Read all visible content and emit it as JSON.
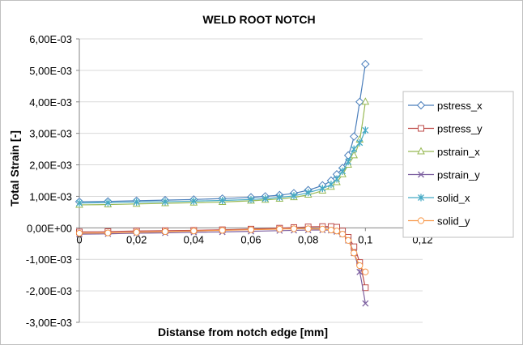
{
  "chart_data": {
    "type": "line",
    "title": "WELD ROOT NOTCH",
    "xlabel": "Distanse from notch edge  [mm]",
    "ylabel": "Total Strain [-]",
    "xlim": [
      0,
      0.12
    ],
    "ylim": [
      -0.003,
      0.006
    ],
    "x_ticks": [
      0,
      0.02,
      0.04,
      0.06,
      0.08,
      0.1,
      0.12
    ],
    "x_tick_labels": [
      "0",
      "0,02",
      "0,04",
      "0,06",
      "0,08",
      "0,1",
      "0,12"
    ],
    "y_ticks": [
      -0.003,
      -0.002,
      -0.001,
      0,
      0.001,
      0.002,
      0.003,
      0.004,
      0.005,
      0.006
    ],
    "y_tick_labels": [
      "-3,00E-03",
      "-2,00E-03",
      "-1,00E-03",
      "0,00E+00",
      "1,00E-03",
      "2,00E-03",
      "3,00E-03",
      "4,00E-03",
      "5,00E-03",
      "6,00E-03"
    ],
    "grid": "horizontal",
    "legend": "right",
    "series": [
      {
        "name": "pstress_x",
        "color": "#4a7ebb",
        "marker": "diamond",
        "x": [
          0,
          0.01,
          0.02,
          0.03,
          0.04,
          0.05,
          0.06,
          0.065,
          0.07,
          0.075,
          0.08,
          0.085,
          0.088,
          0.09,
          0.092,
          0.094,
          0.096,
          0.098,
          0.1
        ],
        "y": [
          0.00083,
          0.00084,
          0.00086,
          0.00088,
          0.0009,
          0.00093,
          0.00097,
          0.001,
          0.00104,
          0.0011,
          0.0012,
          0.00135,
          0.0015,
          0.0017,
          0.0019,
          0.0023,
          0.0029,
          0.004,
          0.0052
        ]
      },
      {
        "name": "pstress_y",
        "color": "#be4b48",
        "marker": "square",
        "x": [
          0,
          0.01,
          0.02,
          0.03,
          0.04,
          0.05,
          0.06,
          0.07,
          0.075,
          0.08,
          0.085,
          0.088,
          0.09,
          0.092,
          0.094,
          0.096,
          0.098,
          0.1
        ],
        "y": [
          -0.00013,
          -0.00012,
          -0.0001,
          -9e-05,
          -8e-05,
          -6e-05,
          -4e-05,
          -1e-05,
          1e-05,
          3e-05,
          4e-05,
          4e-05,
          2e-05,
          -0.0001,
          -0.0003,
          -0.0006,
          -0.0011,
          -0.0019
        ]
      },
      {
        "name": "pstrain_x",
        "color": "#98b954",
        "marker": "triangle",
        "x": [
          0,
          0.01,
          0.02,
          0.03,
          0.04,
          0.05,
          0.06,
          0.065,
          0.07,
          0.075,
          0.08,
          0.085,
          0.088,
          0.09,
          0.092,
          0.094,
          0.096,
          0.098,
          0.1
        ],
        "y": [
          0.00073,
          0.00074,
          0.00076,
          0.00078,
          0.0008,
          0.00082,
          0.00086,
          0.00089,
          0.00092,
          0.00097,
          0.00105,
          0.00118,
          0.0013,
          0.00145,
          0.0017,
          0.002,
          0.0023,
          0.0028,
          0.004
        ]
      },
      {
        "name": "pstrain_y",
        "color": "#7d60a0",
        "marker": "x",
        "x": [
          0,
          0.01,
          0.02,
          0.03,
          0.04,
          0.05,
          0.06,
          0.07,
          0.075,
          0.08,
          0.085,
          0.088,
          0.09,
          0.092,
          0.094,
          0.096,
          0.098,
          0.1
        ],
        "y": [
          -0.0002,
          -0.00019,
          -0.00017,
          -0.00016,
          -0.00014,
          -0.00013,
          -0.00011,
          -9e-05,
          -8e-05,
          -7e-05,
          -7e-05,
          -8e-05,
          -0.00012,
          -0.0002,
          -0.0004,
          -0.0008,
          -0.0014,
          -0.0024
        ]
      },
      {
        "name": "solid_x",
        "color": "#46aac5",
        "marker": "star",
        "x": [
          0,
          0.01,
          0.02,
          0.03,
          0.04,
          0.05,
          0.06,
          0.065,
          0.07,
          0.075,
          0.08,
          0.085,
          0.088,
          0.09,
          0.092,
          0.094,
          0.096,
          0.098,
          0.1
        ],
        "y": [
          0.00079,
          0.0008,
          0.00082,
          0.00083,
          0.00085,
          0.00087,
          0.0009,
          0.00093,
          0.00097,
          0.00102,
          0.00112,
          0.00125,
          0.00138,
          0.00155,
          0.0018,
          0.0021,
          0.0025,
          0.0027,
          0.0031
        ]
      },
      {
        "name": "solid_y",
        "color": "#f79646",
        "marker": "circle",
        "x": [
          0,
          0.01,
          0.02,
          0.03,
          0.04,
          0.05,
          0.06,
          0.07,
          0.075,
          0.08,
          0.085,
          0.088,
          0.09,
          0.092,
          0.094,
          0.096,
          0.098,
          0.1
        ],
        "y": [
          -0.00017,
          -0.00016,
          -0.00014,
          -0.00012,
          -0.0001,
          -8e-05,
          -6e-05,
          -4e-05,
          -3e-05,
          -3e-05,
          -4e-05,
          -7e-05,
          -0.0001,
          -0.0002,
          -0.0004,
          -0.0008,
          -0.0012,
          -0.0014
        ]
      }
    ]
  }
}
